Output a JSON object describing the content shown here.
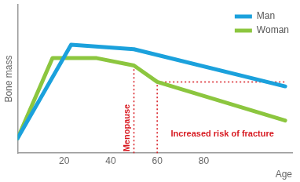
{
  "chart_data": {
    "type": "line",
    "x_label": "Age",
    "y_label": "Bone mass",
    "xlim": [
      0,
      118
    ],
    "ylim": [
      0,
      100
    ],
    "xticks": [
      20,
      40,
      60,
      80
    ],
    "tick_labels": "x",
    "grid": false,
    "legend": "upper right",
    "series": [
      {
        "name": "Man",
        "color": "#1ba1dc",
        "x": [
          0,
          23,
          50,
          115
        ],
        "values": [
          10,
          73,
          70,
          45
        ]
      },
      {
        "name": "Woman",
        "color": "#8cc63f",
        "x": [
          0,
          15,
          34,
          50,
          60,
          115
        ],
        "values": [
          10,
          64,
          64,
          59,
          48,
          22
        ]
      }
    ],
    "reference_lines": [
      {
        "x": [
          50,
          50
        ],
        "y": [
          0,
          59
        ],
        "color": "#d71920",
        "line_style": "dotted"
      },
      {
        "x": [
          60,
          60
        ],
        "y": [
          0,
          48
        ],
        "color": "#d71920",
        "line_style": "dotted"
      },
      {
        "x": [
          60,
          115
        ],
        "y": [
          48,
          48
        ],
        "color": "#d71920",
        "line_style": "dotted"
      }
    ],
    "annotations": [
      {
        "text": "Menopause",
        "x": 50,
        "y": 1,
        "color": "#d71920"
      },
      {
        "text": "Increased risk of fracture",
        "x": 88,
        "y": 13,
        "color": "#d71920"
      }
    ]
  }
}
